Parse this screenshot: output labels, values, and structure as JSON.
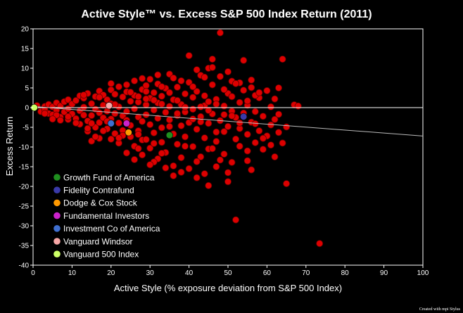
{
  "chart_data": {
    "type": "scatter",
    "title": "Active Style™ vs. Excess S&P 500 Index Return (2011)",
    "xlabel": "Active Style (% exposure deviation from S&P 500 Index)",
    "ylabel": "Excess Return",
    "xlim": [
      0,
      100
    ],
    "ylim": [
      -40,
      20
    ],
    "x_ticks": [
      0,
      10,
      20,
      30,
      40,
      50,
      60,
      70,
      80,
      90,
      100
    ],
    "y_ticks": [
      20,
      15,
      10,
      5,
      0,
      -5,
      -10,
      -15,
      -20,
      -25,
      -30,
      -35,
      -40
    ],
    "grid": false,
    "legend_position": "bottom-left",
    "credit": "Created with mpi Stylus",
    "background_color": "#000000",
    "universe_color": "#dd0000",
    "zero_line_color": "#ffffff",
    "trend_line_color": "#bbbbbb",
    "trend_line": [
      [
        0,
        0.3
      ],
      [
        100,
        -7.2
      ]
    ],
    "highlighted_funds": [
      {
        "name": "Growth Fund of America",
        "x": 35,
        "y": -7,
        "color": "#1f8f1f"
      },
      {
        "name": "Fidelity Contrafund",
        "x": 54,
        "y": -2.3,
        "color": "#3a3aa8"
      },
      {
        "name": "Dodge & Cox Stock",
        "x": 24.5,
        "y": -6.3,
        "color": "#ff9900"
      },
      {
        "name": "Fundamental Investors",
        "x": 24,
        "y": -4,
        "color": "#cc22cc"
      },
      {
        "name": "Investment Co of America",
        "x": 20,
        "y": -4,
        "color": "#3f6fd0"
      },
      {
        "name": "Vanguard Windsor",
        "x": 19.5,
        "y": 0.5,
        "color": "#f7a6a6"
      },
      {
        "name": "Vanguard 500 Index",
        "x": 0.3,
        "y": 0,
        "color": "#ccff66"
      }
    ],
    "universe_points": [
      [
        1,
        0.5
      ],
      [
        2,
        -1
      ],
      [
        3,
        0.3
      ],
      [
        3,
        -0.5
      ],
      [
        4,
        -1.5
      ],
      [
        4,
        0.8
      ],
      [
        5,
        0.2
      ],
      [
        5,
        -1.8
      ],
      [
        6,
        -0.6
      ],
      [
        6,
        1.2
      ],
      [
        7,
        -2.4
      ],
      [
        7,
        0.4
      ],
      [
        8,
        -1.1
      ],
      [
        8,
        1.5
      ],
      [
        9,
        -0.3
      ],
      [
        9,
        -3
      ],
      [
        9,
        2
      ],
      [
        10,
        -1.6
      ],
      [
        10,
        0.9
      ],
      [
        11,
        -2.8
      ],
      [
        11,
        1.8
      ],
      [
        12,
        -0.8
      ],
      [
        12,
        3
      ],
      [
        12,
        -4.2
      ],
      [
        13,
        -1.9
      ],
      [
        13,
        2.4
      ],
      [
        13,
        0.1
      ],
      [
        14,
        -3.4
      ],
      [
        14,
        3.6
      ],
      [
        14,
        -6
      ],
      [
        15,
        -2
      ],
      [
        15,
        1
      ],
      [
        15,
        -8.5
      ],
      [
        16,
        2.8
      ],
      [
        16,
        -0.4
      ],
      [
        16,
        -5
      ],
      [
        17,
        4.2
      ],
      [
        17,
        -1.3
      ],
      [
        17,
        -3.8
      ],
      [
        17,
        -7.8
      ],
      [
        18,
        0.6
      ],
      [
        18,
        -2.6
      ],
      [
        18,
        3.2
      ],
      [
        19,
        -5.4
      ],
      [
        19,
        -0.9
      ],
      [
        19,
        2
      ],
      [
        20,
        -8
      ],
      [
        20,
        -2.9
      ],
      [
        20,
        4.5
      ],
      [
        20,
        1
      ],
      [
        21,
        -1.5
      ],
      [
        21,
        -6.6
      ],
      [
        21,
        3.4
      ],
      [
        22,
        -3.9
      ],
      [
        22,
        0.2
      ],
      [
        22,
        5.3
      ],
      [
        22,
        -9
      ],
      [
        23,
        -2.1
      ],
      [
        23,
        2.7
      ],
      [
        23,
        -5.8
      ],
      [
        24,
        -1
      ],
      [
        24,
        4
      ],
      [
        24,
        -11.5
      ],
      [
        24,
        -3.2
      ],
      [
        25,
        1.6
      ],
      [
        25,
        -7.4
      ],
      [
        25,
        -4.5
      ],
      [
        26,
        3.1
      ],
      [
        26,
        -0.3
      ],
      [
        26,
        -9.8
      ],
      [
        26,
        6.8
      ],
      [
        27,
        -2.4
      ],
      [
        27,
        -5.9
      ],
      [
        27,
        1.4
      ],
      [
        28,
        4.6
      ],
      [
        28,
        -3.5
      ],
      [
        28,
        -8.2
      ],
      [
        28,
        -12
      ],
      [
        29,
        0.7
      ],
      [
        29,
        -1.8
      ],
      [
        29,
        5.6
      ],
      [
        30,
        -4.3
      ],
      [
        30,
        2.4
      ],
      [
        30,
        -10.3
      ],
      [
        30,
        7.2
      ],
      [
        31,
        -0.6
      ],
      [
        31,
        -6.4
      ],
      [
        31,
        3.8
      ],
      [
        32,
        -2.7
      ],
      [
        32,
        1.2
      ],
      [
        32,
        -13
      ],
      [
        32,
        6
      ],
      [
        33,
        -5.1
      ],
      [
        33,
        -8.8
      ],
      [
        33,
        2.9
      ],
      [
        34,
        -1.2
      ],
      [
        34,
        4.9
      ],
      [
        34,
        -11.4
      ],
      [
        35,
        -3.1
      ],
      [
        35,
        8.5
      ],
      [
        35,
        0.3
      ],
      [
        36,
        -6.7
      ],
      [
        36,
        2
      ],
      [
        36,
        -14.8
      ],
      [
        37,
        -2
      ],
      [
        37,
        5.2
      ],
      [
        37,
        -9.3
      ],
      [
        38,
        0.8
      ],
      [
        38,
        -4.6
      ],
      [
        38,
        -12.7
      ],
      [
        39,
        3.5
      ],
      [
        39,
        -7.4
      ],
      [
        39,
        -1.1
      ],
      [
        40,
        -3.8
      ],
      [
        40,
        13.2
      ],
      [
        40,
        6.4
      ],
      [
        40,
        -15.5
      ],
      [
        41,
        -0.4
      ],
      [
        41,
        -9.9
      ],
      [
        41,
        2.6
      ],
      [
        42,
        -5.5
      ],
      [
        42,
        4.1
      ],
      [
        42,
        -17.8
      ],
      [
        43,
        -2.3
      ],
      [
        43,
        8.2
      ],
      [
        43,
        -12.5
      ],
      [
        44,
        0.5
      ],
      [
        44,
        -7.7
      ],
      [
        44,
        3
      ],
      [
        45,
        -4
      ],
      [
        45,
        10
      ],
      [
        45,
        -19.8
      ],
      [
        45,
        -10.5
      ],
      [
        46,
        12.3
      ],
      [
        46,
        -1.6
      ],
      [
        46,
        5.8
      ],
      [
        47,
        -8.6
      ],
      [
        47,
        2.1
      ],
      [
        47,
        -15
      ],
      [
        48,
        -3.3
      ],
      [
        48,
        19
      ],
      [
        48,
        7.9
      ],
      [
        49,
        -6.1
      ],
      [
        49,
        0.4
      ],
      [
        49,
        -11.8
      ],
      [
        50,
        3.6
      ],
      [
        50,
        -4.8
      ],
      [
        50,
        -18.8
      ],
      [
        51,
        -0.9
      ],
      [
        51,
        6.7
      ],
      [
        51,
        -13.9
      ],
      [
        52,
        -2.5
      ],
      [
        52,
        -28.5
      ],
      [
        52,
        -8
      ],
      [
        53,
        1.3
      ],
      [
        53,
        -5.3
      ],
      [
        53,
        -9.8
      ],
      [
        54,
        12
      ],
      [
        54,
        -1.4
      ],
      [
        54,
        4.4
      ],
      [
        55,
        -6.8
      ],
      [
        55,
        -11
      ],
      [
        55,
        0.6
      ],
      [
        56,
        -3.7
      ],
      [
        56,
        -15.8
      ],
      [
        56,
        7
      ],
      [
        57,
        -1
      ],
      [
        57,
        -8.9
      ],
      [
        58,
        -5.9
      ],
      [
        58,
        2.5
      ],
      [
        59,
        -10.6
      ],
      [
        59,
        -2.2
      ],
      [
        60,
        4.3
      ],
      [
        60,
        -7.2
      ],
      [
        61,
        -4.4
      ],
      [
        61,
        0.2
      ],
      [
        62,
        -12.5
      ],
      [
        62,
        -3
      ],
      [
        63,
        -6.3
      ],
      [
        63,
        -1.7
      ],
      [
        64,
        12.3
      ],
      [
        64,
        -9
      ],
      [
        65,
        -19.3
      ],
      [
        65,
        -4.9
      ],
      [
        67,
        0.7
      ],
      [
        68,
        0.4
      ],
      [
        73.5,
        -34.5
      ],
      [
        13,
        3.2
      ],
      [
        15,
        -4
      ],
      [
        17,
        2.6
      ],
      [
        19,
        -3.5
      ],
      [
        21,
        0.8
      ],
      [
        23,
        -7.1
      ],
      [
        25,
        3.9
      ],
      [
        27,
        -10.4
      ],
      [
        29,
        2.2
      ],
      [
        31,
        -13.8
      ],
      [
        33,
        0.9
      ],
      [
        35,
        -4.8
      ],
      [
        37,
        1.8
      ],
      [
        39,
        -9.8
      ],
      [
        41,
        5.3
      ],
      [
        43,
        -3.6
      ],
      [
        45,
        1.5
      ],
      [
        47,
        -6.2
      ],
      [
        49,
        4.6
      ],
      [
        51,
        -2.1
      ],
      [
        53,
        6.3
      ],
      [
        55,
        -13.5
      ],
      [
        57,
        3.1
      ],
      [
        59,
        -7.8
      ],
      [
        61,
        -9.5
      ],
      [
        63,
        5
      ],
      [
        26,
        -13.2
      ],
      [
        30,
        -14.5
      ],
      [
        34,
        -15.3
      ],
      [
        36,
        -17.3
      ],
      [
        38,
        -16.4
      ],
      [
        42,
        -13.7
      ],
      [
        44,
        -16.8
      ],
      [
        46,
        -10.4
      ],
      [
        48,
        -13.3
      ],
      [
        50,
        -16.5
      ],
      [
        27,
        -6.8
      ],
      [
        29,
        -8.1
      ],
      [
        31,
        -9.1
      ],
      [
        33,
        -11.6
      ],
      [
        22,
        -7.7
      ],
      [
        18,
        -5.9
      ],
      [
        16,
        -7.4
      ],
      [
        14,
        -5.3
      ],
      [
        11,
        -3.9
      ],
      [
        9,
        -2.3
      ],
      [
        7,
        -3.2
      ],
      [
        6,
        -1.9
      ],
      [
        5,
        -2.9
      ],
      [
        3,
        -1.5
      ],
      [
        20,
        6.1
      ],
      [
        24,
        5.8
      ],
      [
        28,
        7.4
      ],
      [
        32,
        8.3
      ],
      [
        36,
        7.5
      ],
      [
        38,
        6.8
      ],
      [
        42,
        9.6
      ],
      [
        44,
        7.7
      ],
      [
        46,
        10.2
      ],
      [
        50,
        9.1
      ],
      [
        52,
        6.1
      ],
      [
        56,
        5.1
      ],
      [
        58,
        3.8
      ],
      [
        62,
        2.2
      ],
      [
        27,
        2.8
      ],
      [
        29,
        4.1
      ],
      [
        31,
        1.9
      ],
      [
        33,
        5.3
      ],
      [
        35,
        3.8
      ],
      [
        37,
        -1.5
      ],
      [
        39,
        0.1
      ],
      [
        41,
        -2.9
      ],
      [
        43,
        0.2
      ],
      [
        45,
        -0.7
      ],
      [
        47,
        0.9
      ],
      [
        49,
        -1.8
      ],
      [
        51,
        2.8
      ],
      [
        53,
        -3.9
      ],
      [
        55,
        1.7
      ],
      [
        57,
        -4.1
      ]
    ]
  }
}
